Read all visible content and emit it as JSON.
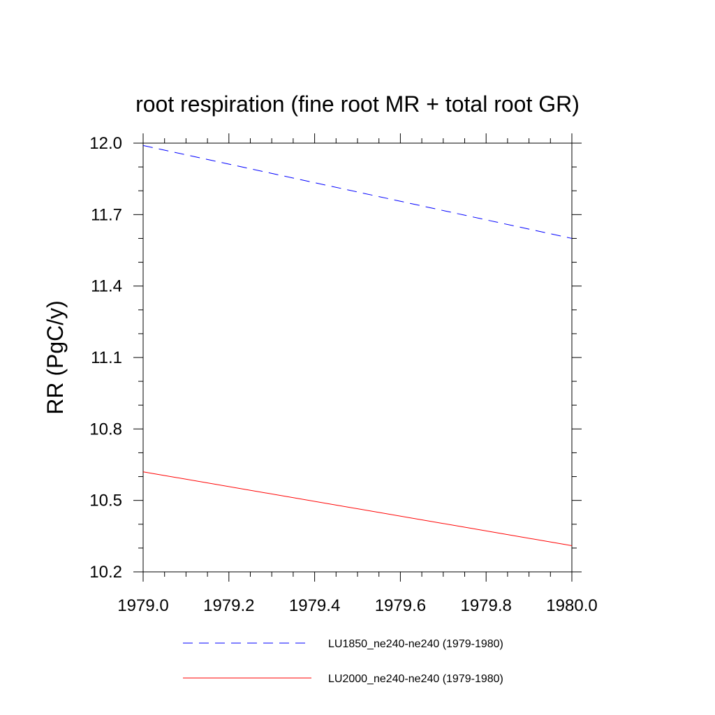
{
  "chart_data": {
    "type": "line",
    "title": "root respiration (fine root MR + total root GR)",
    "xlabel": "",
    "ylabel": "RR  (PgC/y)",
    "xlim": [
      1979.0,
      1980.0
    ],
    "ylim": [
      10.2,
      12.0
    ],
    "x_ticks": [
      "1979.0",
      "1979.2",
      "1979.4",
      "1979.6",
      "1979.8",
      "1980.0"
    ],
    "y_ticks": [
      "10.2",
      "10.5",
      "10.8",
      "11.1",
      "11.4",
      "11.7",
      "12.0"
    ],
    "grid": false,
    "legend_position": "bottom",
    "series": [
      {
        "name": "LU1850_ne240-ne240 (1979-1980)",
        "color": "#0000ff",
        "dash": "dashed",
        "x": [
          1979.0,
          1980.0
        ],
        "y": [
          11.99,
          11.6
        ]
      },
      {
        "name": "LU2000_ne240-ne240 (1979-1980)",
        "color": "#ff0000",
        "dash": "solid",
        "x": [
          1979.0,
          1980.0
        ],
        "y": [
          10.62,
          10.31
        ]
      }
    ]
  }
}
